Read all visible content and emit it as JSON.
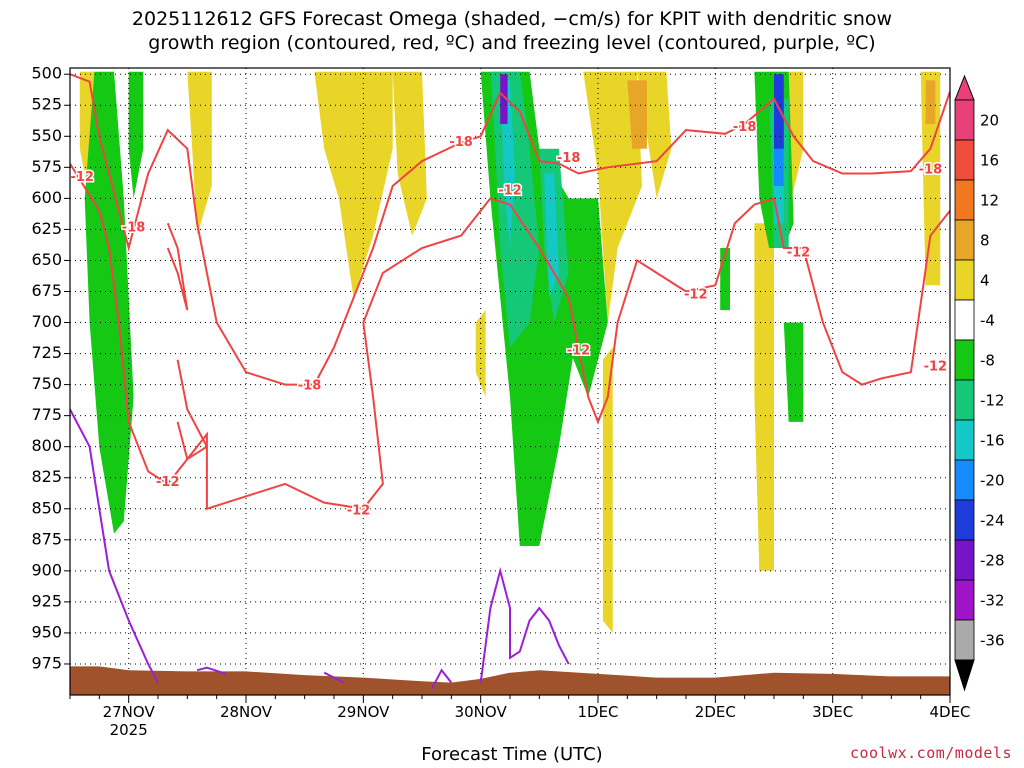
{
  "chart_data": {
    "type": "contour-timeheight",
    "title_line1": "2025112612 GFS Forecast Omega (shaded, −cm/s) for KPIT with dendritic snow",
    "title_line2": "growth region (contoured, red, ºC) and freezing level (contoured, purple, ºC)",
    "xlabel": "Forecast Time (UTC)",
    "credit": "coolwx.com/models",
    "x_ticks": [
      {
        "hour": 12,
        "label": "27NOV",
        "sub": "2025"
      },
      {
        "hour": 36,
        "label": "28NOV",
        "sub": ""
      },
      {
        "hour": 60,
        "label": "29NOV",
        "sub": ""
      },
      {
        "hour": 84,
        "label": "30NOV",
        "sub": ""
      },
      {
        "hour": 108,
        "label": "1DEC",
        "sub": ""
      },
      {
        "hour": 132,
        "label": "2DEC",
        "sub": ""
      },
      {
        "hour": 156,
        "label": "3DEC",
        "sub": ""
      },
      {
        "hour": 180,
        "label": "4DEC",
        "sub": ""
      }
    ],
    "x_range_hours": [
      0,
      180
    ],
    "y_ticks": [
      500,
      525,
      550,
      575,
      600,
      625,
      650,
      675,
      700,
      725,
      750,
      775,
      800,
      825,
      850,
      875,
      900,
      925,
      950,
      975
    ],
    "y_range": [
      495,
      1000
    ],
    "grid": true,
    "colorbar": {
      "labels": [
        "20",
        "16",
        "12",
        "8",
        "4",
        "-4",
        "-8",
        "-12",
        "-16",
        "-20",
        "-24",
        "-28",
        "-32",
        "-36"
      ],
      "colors": [
        "#e8417a",
        "#f04d3c",
        "#f0781e",
        "#e8a628",
        "#e8d528",
        "#ffffff",
        "#14c814",
        "#14c878",
        "#14c8c8",
        "#148cff",
        "#1e3cdc",
        "#7814c8",
        "#a014c8",
        "#aaaaaa"
      ]
    },
    "terrain_color": "#a0522d",
    "contour_labels_red": [
      {
        "hour": 2.5,
        "p": 583,
        "text": "-12"
      },
      {
        "hour": 13,
        "p": 624,
        "text": "-18"
      },
      {
        "hour": 20,
        "p": 829,
        "text": "-12"
      },
      {
        "hour": 49,
        "p": 751,
        "text": "-18"
      },
      {
        "hour": 59,
        "p": 852,
        "text": "-12"
      },
      {
        "hour": 80,
        "p": 555,
        "text": "-18"
      },
      {
        "hour": 90,
        "p": 594,
        "text": "-12"
      },
      {
        "hour": 102,
        "p": 568,
        "text": "-18"
      },
      {
        "hour": 104,
        "p": 723,
        "text": "-12"
      },
      {
        "hour": 138,
        "p": 543,
        "text": "-18"
      },
      {
        "hour": 128,
        "p": 678,
        "text": "-12"
      },
      {
        "hour": 149,
        "p": 644,
        "text": "-12"
      },
      {
        "hour": 176,
        "p": 577,
        "text": "-18"
      },
      {
        "hour": 177,
        "p": 736,
        "text": "-12"
      }
    ]
  }
}
